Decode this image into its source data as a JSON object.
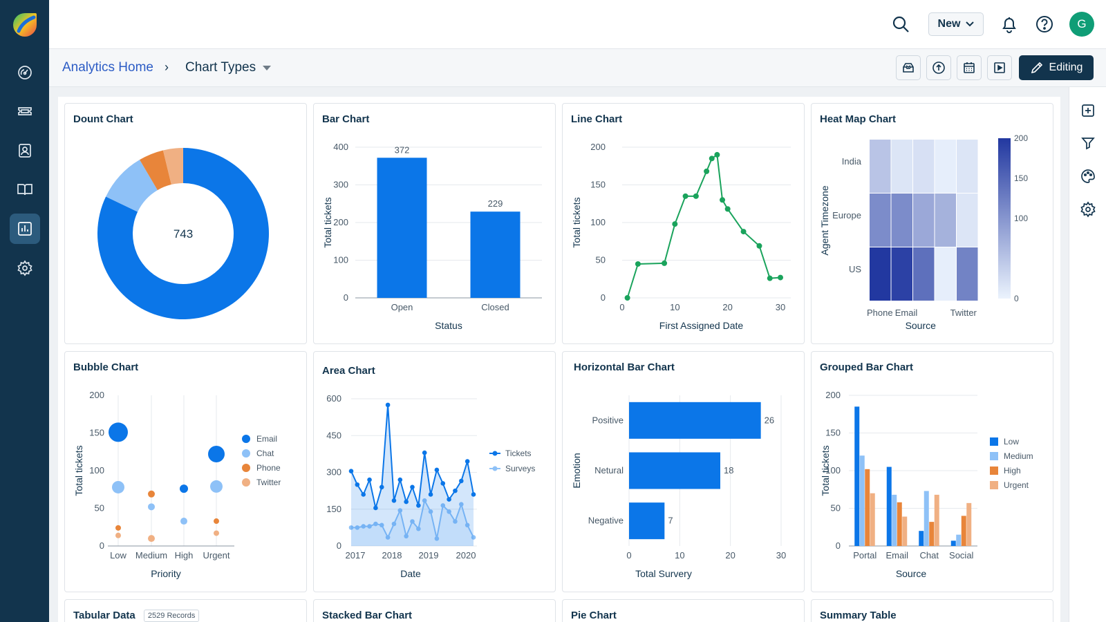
{
  "colors": {
    "nav_bg": "#12344d",
    "nav_active": "#2c5b7d",
    "primary": "#0b76e8",
    "light": "#8ec1f7",
    "orange": "#e8853a",
    "peach": "#f0b083",
    "green": "#1aa35c",
    "avatar": "#0f9d76",
    "link": "#2c5cc5"
  },
  "nav": {
    "items": [
      {
        "name": "dashboard",
        "icon": "gauge-icon"
      },
      {
        "name": "tickets",
        "icon": "ticket-icon"
      },
      {
        "name": "contacts",
        "icon": "contact-card-icon"
      },
      {
        "name": "knowledge-base",
        "icon": "book-icon"
      },
      {
        "name": "analytics",
        "icon": "bar-chart-icon",
        "active": true
      },
      {
        "name": "admin",
        "icon": "gear-icon"
      }
    ]
  },
  "header": {
    "new_label": "New",
    "avatar_initial": "G"
  },
  "breadcrumb": {
    "home": "Analytics Home",
    "separator": "›",
    "current": "Chart Types"
  },
  "toolbar": {
    "editing_label": "Editing"
  },
  "cards": {
    "donut": {
      "title": "Dount Chart"
    },
    "bar": {
      "title": "Bar Chart"
    },
    "line": {
      "title": "Line Chart"
    },
    "heatmap": {
      "title": "Heat Map Chart"
    },
    "bubble": {
      "title": "Bubble Chart"
    },
    "area": {
      "title": "Area Chart"
    },
    "hbar": {
      "title": "Horizontal Bar Chart"
    },
    "grouped": {
      "title": "Grouped Bar Chart"
    },
    "tabular": {
      "title": "Tabular Data",
      "badge": "2529 Records"
    },
    "stacked": {
      "title": "Stacked Bar Chart"
    },
    "pie": {
      "title": "Pie Chart"
    },
    "summary": {
      "title": "Summary Table"
    }
  },
  "chart_data": [
    {
      "id": "donut",
      "type": "pie",
      "title": "Dount Chart",
      "center_label": "743",
      "values": [
        610,
        70,
        35,
        28
      ],
      "colors": [
        "#0b76e8",
        "#8ec1f7",
        "#e8853a",
        "#f0b083"
      ]
    },
    {
      "id": "bar",
      "type": "bar",
      "title": "Bar Chart",
      "categories": [
        "Open",
        "Closed"
      ],
      "values": [
        372,
        229
      ],
      "xlabel": "Status",
      "ylabel": "Total tickets",
      "ylim": [
        0,
        400
      ],
      "yticks": [
        0,
        100,
        200,
        300,
        400
      ]
    },
    {
      "id": "line",
      "type": "line",
      "title": "Line Chart",
      "x": [
        1,
        3,
        8,
        10,
        12,
        14,
        16,
        17,
        18,
        19,
        20,
        23,
        26,
        28,
        30
      ],
      "y": [
        0,
        45,
        46,
        98,
        135,
        135,
        168,
        185,
        190,
        130,
        118,
        88,
        69,
        26,
        27
      ],
      "xlabel": "First Assigned Date",
      "ylabel": "Total tickets",
      "xlim": [
        0,
        30
      ],
      "ylim": [
        0,
        200
      ],
      "xticks": [
        0,
        10,
        20,
        30
      ],
      "yticks": [
        0,
        50,
        100,
        150,
        200
      ]
    },
    {
      "id": "heatmap",
      "type": "heatmap",
      "title": "Heat Map Chart",
      "rows": [
        "India",
        "Europe",
        "US"
      ],
      "columns": [
        "Phone",
        "Email",
        "",
        "Twitter",
        ""
      ],
      "xtick_labels": [
        "Phone",
        "Email",
        "Twitter"
      ],
      "values": [
        [
          50,
          15,
          20,
          5,
          15
        ],
        [
          110,
          110,
          80,
          70,
          15
        ],
        [
          200,
          190,
          140,
          5,
          120
        ]
      ],
      "xlabel": "Source",
      "ylabel": "Agent Timezone",
      "scale": [
        0,
        200
      ],
      "scale_ticks": [
        0,
        100,
        150,
        200
      ]
    },
    {
      "id": "bubble",
      "type": "scatter",
      "title": "Bubble Chart",
      "categories": [
        "Low",
        "Medium",
        "High",
        "Urgent"
      ],
      "series": [
        {
          "name": "Email",
          "color": "#0b76e8",
          "points": [
            [
              0,
              151,
              14
            ],
            [
              2,
              76,
              6
            ],
            [
              3,
              122,
              12
            ]
          ]
        },
        {
          "name": "Chat",
          "color": "#8ec1f7",
          "points": [
            [
              0,
              78,
              9
            ],
            [
              1,
              52,
              5
            ],
            [
              2,
              33,
              5
            ],
            [
              3,
              79,
              9
            ]
          ]
        },
        {
          "name": "Phone",
          "color": "#e8853a",
          "points": [
            [
              0,
              24,
              4
            ],
            [
              1,
              69,
              5
            ],
            [
              3,
              33,
              4
            ]
          ]
        },
        {
          "name": "Twitter",
          "color": "#f0b083",
          "points": [
            [
              0,
              14,
              4
            ],
            [
              1,
              10,
              5
            ],
            [
              3,
              17,
              4
            ]
          ]
        }
      ],
      "xlabel": "Priority",
      "ylabel": "Total tickets",
      "ylim": [
        0,
        200
      ],
      "yticks": [
        0,
        50,
        100,
        150,
        200
      ]
    },
    {
      "id": "area",
      "type": "area",
      "title": "Area Chart",
      "xlabel": "Date",
      "xticks": [
        "2017",
        "2018",
        "2019",
        "2020"
      ],
      "ylim": [
        0,
        600
      ],
      "yticks": [
        0,
        150,
        300,
        450,
        600
      ],
      "series": [
        {
          "name": "Tickets",
          "color": "#0b76e8",
          "values": [
            305,
            250,
            210,
            270,
            155,
            240,
            575,
            185,
            270,
            180,
            240,
            165,
            380,
            210,
            310,
            255,
            190,
            225,
            265,
            345,
            210
          ]
        },
        {
          "name": "Surveys",
          "color": "#8ec1f7",
          "values": [
            75,
            75,
            80,
            80,
            90,
            85,
            35,
            90,
            145,
            40,
            100,
            70,
            185,
            140,
            30,
            165,
            140,
            100,
            170,
            85,
            35
          ]
        }
      ]
    },
    {
      "id": "hbar",
      "type": "bar",
      "orientation": "horizontal",
      "title": "Horizontal Bar Chart",
      "categories": [
        "Positive",
        "Netural",
        "Negative"
      ],
      "values": [
        26,
        18,
        7
      ],
      "xlabel": "Total Survery",
      "ylabel": "Emotion",
      "xlim": [
        0,
        30
      ],
      "xticks": [
        0,
        10,
        20,
        30
      ]
    },
    {
      "id": "grouped",
      "type": "bar",
      "title": "Grouped Bar Chart",
      "categories": [
        "Portal",
        "Email",
        "Chat",
        "Social"
      ],
      "series": [
        {
          "name": "Low",
          "color": "#0b76e8",
          "values": [
            185,
            105,
            20,
            7
          ]
        },
        {
          "name": "Medium",
          "color": "#8ec1f7",
          "values": [
            120,
            68,
            73,
            15
          ]
        },
        {
          "name": "High",
          "color": "#e8853a",
          "values": [
            102,
            58,
            32,
            40
          ]
        },
        {
          "name": "Urgent",
          "color": "#f0b083",
          "values": [
            70,
            39,
            68,
            57
          ]
        }
      ],
      "xlabel": "Source",
      "ylabel": "Total tickets",
      "ylim": [
        0,
        200
      ],
      "yticks": [
        0,
        50,
        100,
        150,
        200
      ]
    }
  ]
}
